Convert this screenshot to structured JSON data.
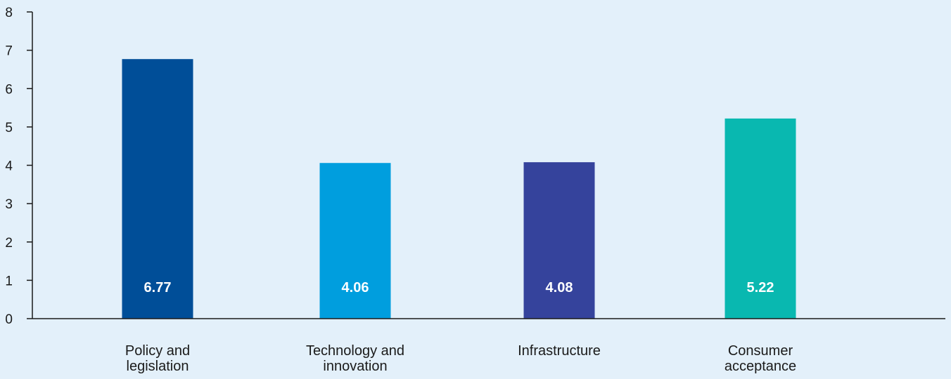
{
  "chart_data": {
    "type": "bar",
    "categories": [
      [
        "Policy and",
        "legislation"
      ],
      [
        "Technology and",
        "innovation"
      ],
      [
        "Infrastructure"
      ],
      [
        "Consumer",
        "acceptance"
      ]
    ],
    "values": [
      6.77,
      4.06,
      4.08,
      5.22
    ],
    "data_labels": [
      "6.77",
      "4.06",
      "4.08",
      "5.22"
    ],
    "bar_colors": [
      "#004e98",
      "#009ede",
      "#35439c",
      "#09b8b0"
    ],
    "yticks": [
      "0",
      "1",
      "2",
      "3",
      "4",
      "5",
      "6",
      "7",
      "8"
    ],
    "ylim": [
      0,
      8
    ],
    "grid": false,
    "legend": "none",
    "title": "",
    "xlabel": "",
    "ylabel": ""
  }
}
